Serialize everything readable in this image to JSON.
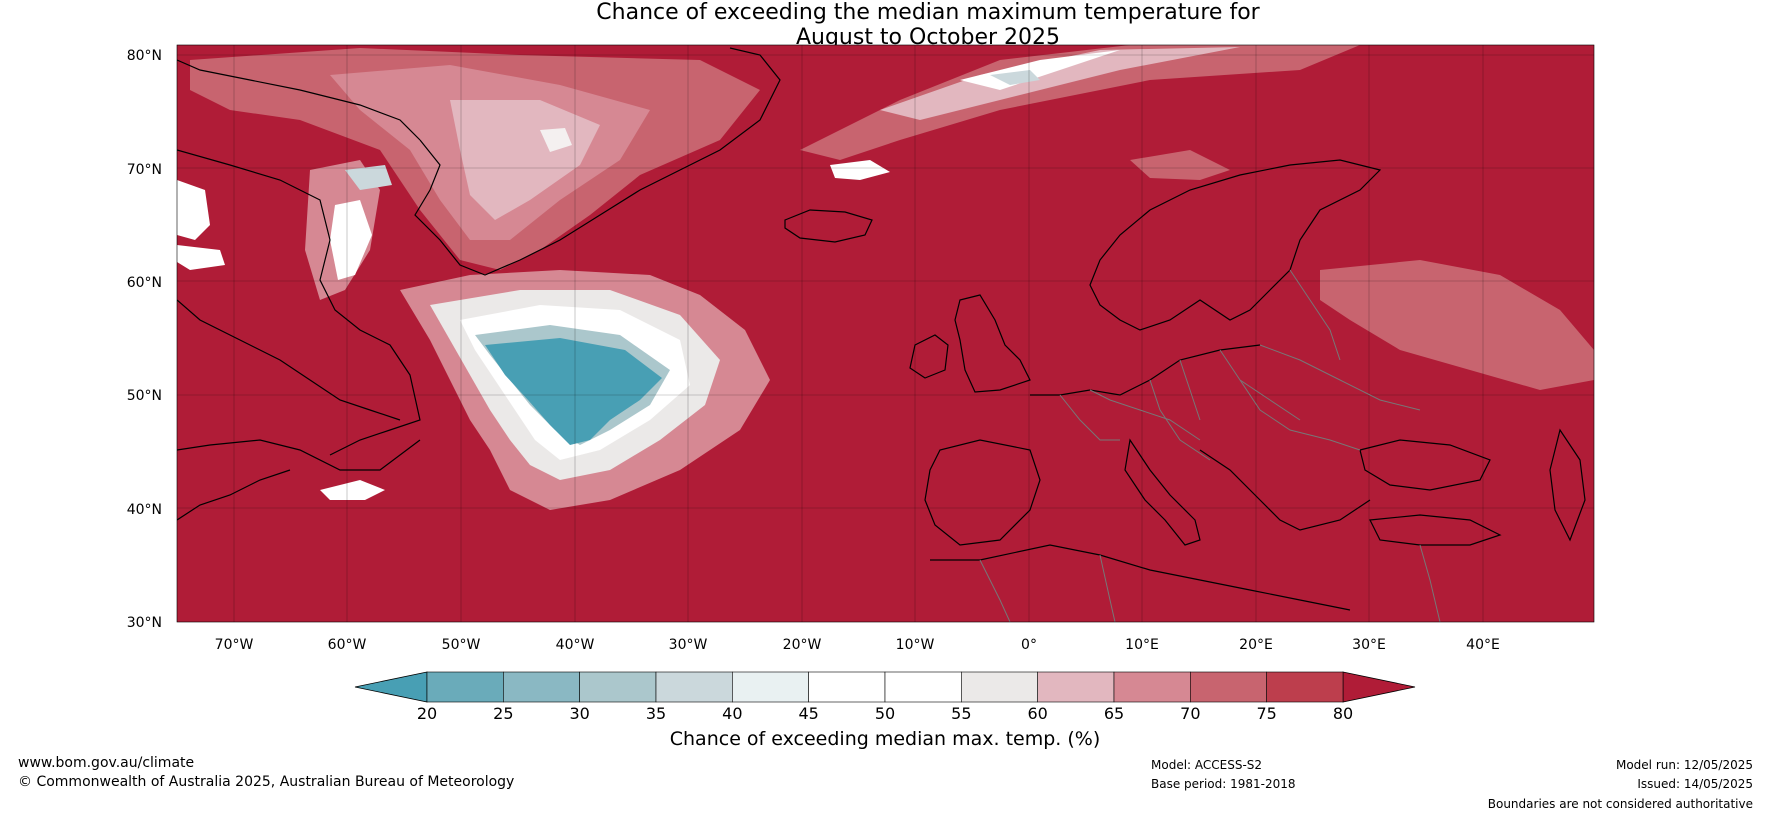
{
  "title_line1": "Chance of exceeding the median maximum temperature for",
  "title_line2": "August to October 2025",
  "map": {
    "lat_labels": [
      "80°N",
      "70°N",
      "60°N",
      "50°N",
      "40°N",
      "30°N"
    ],
    "lon_labels": [
      "70°W",
      "60°W",
      "50°W",
      "40°W",
      "30°W",
      "20°W",
      "10°W",
      "0°",
      "10°E",
      "20°E",
      "30°E",
      "40°E"
    ],
    "background_color": "#b01c37",
    "landmass_labels_shown": false
  },
  "colorbar": {
    "title": "Chance of exceeding median max. temp. (%)",
    "ticks": [
      "20",
      "25",
      "30",
      "35",
      "40",
      "45",
      "50",
      "55",
      "60",
      "65",
      "70",
      "75",
      "80"
    ],
    "colors": [
      "#489fb4",
      "#6aabba",
      "#8ab8c3",
      "#abc7cc",
      "#cbd8dc",
      "#e9f1f2",
      "#ffffff",
      "#ffffff",
      "#ebe9e8",
      "#e2b7bf",
      "#d68893",
      "#c8646f",
      "#bd3e4d",
      "#b01c37"
    ]
  },
  "footer": {
    "website": "www.bom.gov.au/climate",
    "copyright": "© Commonwealth of Australia 2025, Australian Bureau of Meteorology",
    "model": "Model: ACCESS-S2",
    "base_period": "Base period: 1981-2018",
    "model_run": "Model run: 12/05/2025",
    "issued": "Issued: 14/05/2025",
    "boundaries": "Boundaries are not considered authoritative"
  }
}
